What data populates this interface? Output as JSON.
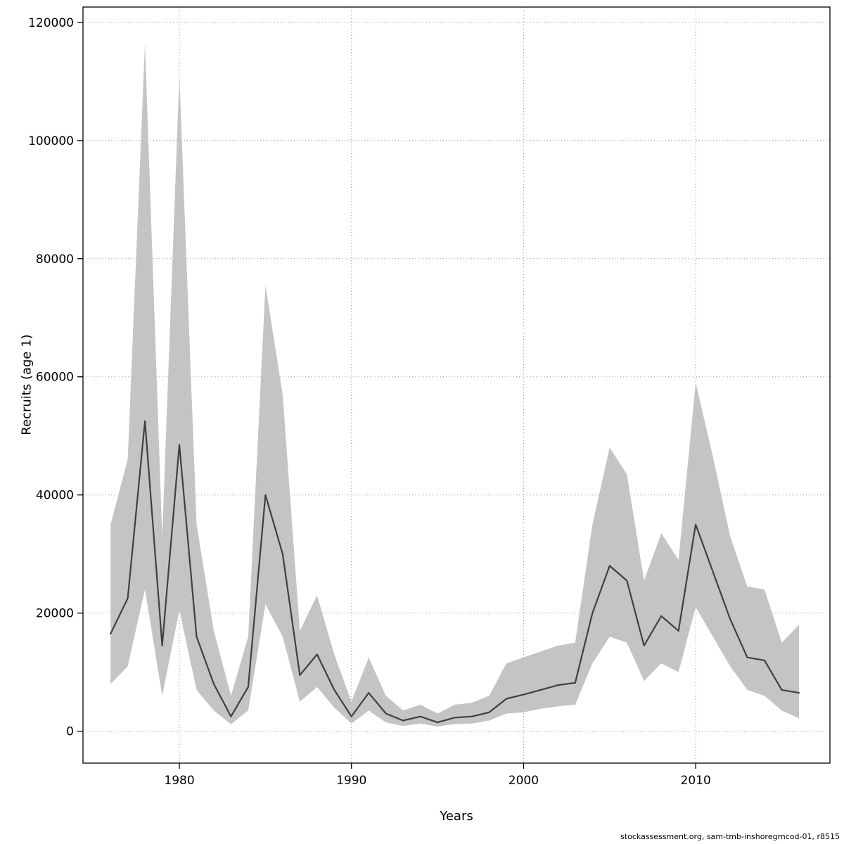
{
  "watermark": "stockassessment.org, sam-tmb-inshoregrncod-01, r8515",
  "chart_data": {
    "type": "line",
    "title": "",
    "xlabel": "Years",
    "ylabel": "Recruits (age 1)",
    "legend": null,
    "grid": true,
    "xlim": [
      1974.4,
      2017.8
    ],
    "ylim": [
      -5400,
      122600
    ],
    "x_ticks": [
      1980,
      1990,
      2000,
      2010
    ],
    "y_ticks": [
      0,
      20000,
      40000,
      60000,
      80000,
      100000,
      120000
    ],
    "band_color": "#c4c4c4",
    "line_color": "#404040",
    "years": [
      1976,
      1977,
      1978,
      1979,
      1980,
      1981,
      1982,
      1983,
      1984,
      1985,
      1986,
      1987,
      1988,
      1989,
      1990,
      1991,
      1992,
      1993,
      1994,
      1995,
      1996,
      1997,
      1998,
      1999,
      2000,
      2001,
      2002,
      2003,
      2004,
      2005,
      2006,
      2007,
      2008,
      2009,
      2010,
      2011,
      2012,
      2013,
      2014,
      2015,
      2016
    ],
    "series": [
      {
        "name": "estimate",
        "values": [
          16500,
          22500,
          52500,
          14500,
          48500,
          16000,
          8000,
          2500,
          7500,
          40000,
          30000,
          9500,
          13000,
          7000,
          2500,
          6500,
          3000,
          1800,
          2500,
          1500,
          2300,
          2500,
          3200,
          5500,
          6200,
          7000,
          7800,
          8200,
          20000,
          28000,
          25500,
          14500,
          19500,
          17000,
          35000,
          27000,
          19000,
          12500,
          12000,
          7000,
          6500
        ]
      },
      {
        "name": "lower_ci",
        "values": [
          8000,
          11000,
          24000,
          6000,
          20500,
          7000,
          3500,
          1200,
          3500,
          21500,
          16000,
          5000,
          7500,
          4000,
          1300,
          3500,
          1500,
          900,
          1300,
          800,
          1200,
          1300,
          1800,
          3000,
          3200,
          3800,
          4200,
          4500,
          11500,
          16000,
          15000,
          8500,
          11500,
          10000,
          21000,
          16000,
          11000,
          7000,
          6000,
          3500,
          2200
        ]
      },
      {
        "name": "upper_ci",
        "values": [
          35000,
          46000,
          116500,
          33000,
          111000,
          35000,
          17000,
          6000,
          16000,
          75500,
          57000,
          17000,
          23000,
          13000,
          5000,
          12500,
          6000,
          3500,
          4500,
          3000,
          4500,
          4800,
          6000,
          11500,
          12500,
          13500,
          14500,
          15000,
          35000,
          48000,
          43500,
          25500,
          33500,
          29000,
          59000,
          46500,
          33000,
          24500,
          24000,
          15000,
          18000
        ]
      }
    ]
  }
}
